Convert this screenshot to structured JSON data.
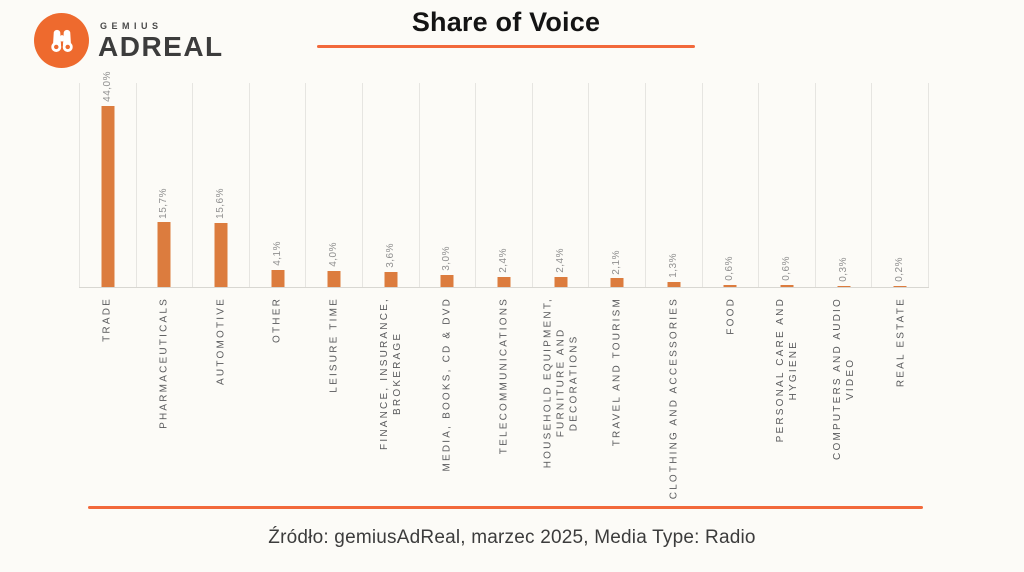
{
  "brand": {
    "gemius": "GEMIUS",
    "adreal": "ADREAL"
  },
  "title": {
    "text": "Share of Voice"
  },
  "footer": {
    "source": "Źródło: gemiusAdReal, marzec 2025, Media Type: Radio"
  },
  "chart_data": {
    "type": "bar",
    "title": "Share of Voice",
    "xlabel": "",
    "ylabel": "",
    "unit": "%",
    "decimal_separator": ",",
    "ylim": [
      0,
      50
    ],
    "grid": "vertical-column-separators",
    "legend": "none",
    "bar_color": "#DC7C3E",
    "accent_color": "#F2693B",
    "value_label_color": "#8F8F8F",
    "category_label_color": "#58595B",
    "categories": [
      "TRADE",
      "PHARMACEUTICALS",
      "AUTOMOTIVE",
      "OTHER",
      "LEISURE TIME",
      "FINANCE, INSURANCE, BROKERAGE",
      "MEDIA, BOOKS, CD & DVD",
      "TELECOMMUNICATIONS",
      "HOUSEHOLD EQUIPMENT, FURNITURE AND DECORATIONS",
      "TRAVEL AND TOURISM",
      "CLOTHING AND ACCESSORIES",
      "FOOD",
      "PERSONAL CARE AND HYGIENE",
      "COMPUTERS AND AUDIO VIDEO",
      "REAL ESTATE"
    ],
    "category_lines": [
      [
        "TRADE"
      ],
      [
        "PHARMACEUTICALS"
      ],
      [
        "AUTOMOTIVE"
      ],
      [
        "OTHER"
      ],
      [
        "LEISURE TIME"
      ],
      [
        "FINANCE, INSURANCE,",
        "BROKERAGE"
      ],
      [
        "MEDIA, BOOKS, CD & DVD"
      ],
      [
        "TELECOMMUNICATIONS"
      ],
      [
        "HOUSEHOLD EQUIPMENT,",
        "FURNITURE AND",
        "DECORATIONS"
      ],
      [
        "TRAVEL AND TOURISM"
      ],
      [
        "CLOTHING AND ACCESSORIES"
      ],
      [
        "FOOD"
      ],
      [
        "PERSONAL CARE AND",
        "HYGIENE"
      ],
      [
        "COMPUTERS AND AUDIO",
        "VIDEO"
      ],
      [
        "REAL ESTATE"
      ]
    ],
    "values": [
      44.0,
      15.7,
      15.6,
      4.1,
      4.0,
      3.6,
      3.0,
      2.4,
      2.4,
      2.1,
      1.3,
      0.6,
      0.6,
      0.3,
      0.2
    ],
    "value_labels": [
      "44,0%",
      "15,7%",
      "15,6%",
      "4,1%",
      "4,0%",
      "3,6%",
      "3,0%",
      "2,4%",
      "2,4%",
      "2,1%",
      "1,3%",
      "0,6%",
      "0,6%",
      "0,3%",
      "0,2%"
    ]
  }
}
